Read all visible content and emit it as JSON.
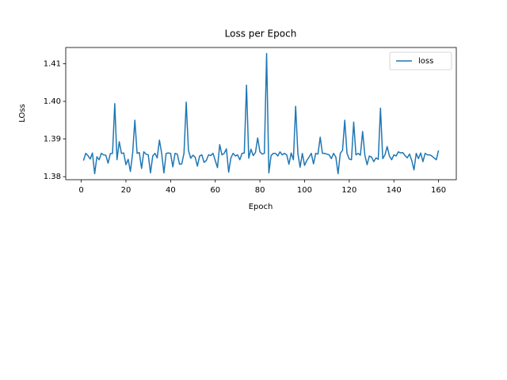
{
  "chart_data": {
    "type": "line",
    "title": "Loss per Epoch",
    "x_label": "Epoch",
    "y_label": "LOss",
    "x": [
      1,
      2,
      3,
      4,
      5,
      6,
      7,
      8,
      9,
      10,
      11,
      12,
      13,
      14,
      15,
      16,
      17,
      18,
      19,
      20,
      21,
      22,
      23,
      24,
      25,
      26,
      27,
      28,
      29,
      30,
      31,
      32,
      33,
      34,
      35,
      36,
      37,
      38,
      39,
      40,
      41,
      42,
      43,
      44,
      45,
      46,
      47,
      48,
      49,
      50,
      51,
      52,
      53,
      54,
      55,
      56,
      57,
      58,
      59,
      60,
      61,
      62,
      63,
      64,
      65,
      66,
      67,
      68,
      69,
      70,
      71,
      72,
      73,
      74,
      75,
      76,
      77,
      78,
      79,
      80,
      81,
      82,
      83,
      84,
      85,
      86,
      87,
      88,
      89,
      90,
      91,
      92,
      93,
      94,
      95,
      96,
      97,
      98,
      99,
      100,
      101,
      102,
      103,
      104,
      105,
      106,
      107,
      108,
      109,
      110,
      111,
      112,
      113,
      114,
      115,
      116,
      117,
      118,
      119,
      120,
      121,
      122,
      123,
      124,
      125,
      126,
      127,
      128,
      129,
      130,
      131,
      132,
      133,
      134,
      135,
      136,
      137,
      138,
      139,
      140,
      141,
      142,
      143,
      144,
      145,
      146,
      147,
      148,
      149,
      150,
      151,
      152,
      153,
      154,
      155,
      156,
      157,
      158,
      159,
      160
    ],
    "series": [
      {
        "name": "loss",
        "color": "#1f77b4",
        "values": [
          1.3843,
          1.3862,
          1.3856,
          1.3847,
          1.3863,
          1.3808,
          1.3853,
          1.3845,
          1.3862,
          1.3858,
          1.3857,
          1.3836,
          1.3861,
          1.3862,
          1.3994,
          1.3845,
          1.3893,
          1.3862,
          1.3863,
          1.3832,
          1.3846,
          1.3814,
          1.3862,
          1.395,
          1.3862,
          1.3864,
          1.3822,
          1.3866,
          1.386,
          1.3858,
          1.381,
          1.3855,
          1.3862,
          1.385,
          1.3897,
          1.3862,
          1.381,
          1.3862,
          1.3863,
          1.3862,
          1.3826,
          1.3862,
          1.386,
          1.3833,
          1.3834,
          1.3862,
          1.3998,
          1.387,
          1.3849,
          1.3857,
          1.3852,
          1.3828,
          1.3855,
          1.3858,
          1.3838,
          1.3843,
          1.3858,
          1.3856,
          1.3862,
          1.3843,
          1.3824,
          1.3885,
          1.3858,
          1.3862,
          1.3874,
          1.3812,
          1.385,
          1.3862,
          1.3855,
          1.3858,
          1.3845,
          1.3862,
          1.3863,
          1.4043,
          1.3849,
          1.3873,
          1.3856,
          1.3864,
          1.3903,
          1.3866,
          1.386,
          1.3862,
          1.4127,
          1.381,
          1.3856,
          1.3862,
          1.3862,
          1.3855,
          1.3866,
          1.3858,
          1.3862,
          1.3858,
          1.3833,
          1.3863,
          1.3845,
          1.3987,
          1.3862,
          1.3825,
          1.3862,
          1.383,
          1.3843,
          1.3852,
          1.3862,
          1.3834,
          1.3862,
          1.386,
          1.3905,
          1.3862,
          1.3862,
          1.386,
          1.3858,
          1.3848,
          1.3862,
          1.3852,
          1.3808,
          1.3862,
          1.387,
          1.395,
          1.3862,
          1.3847,
          1.3845,
          1.3945,
          1.3858,
          1.3862,
          1.3857,
          1.392,
          1.3857,
          1.3832,
          1.3855,
          1.3852,
          1.384,
          1.385,
          1.3846,
          1.3982,
          1.3848,
          1.3858,
          1.388,
          1.3855,
          1.3845,
          1.3858,
          1.3855,
          1.3866,
          1.3863,
          1.3864,
          1.3856,
          1.385,
          1.386,
          1.3843,
          1.3818,
          1.3862,
          1.3848,
          1.3863,
          1.384,
          1.3862,
          1.3858,
          1.3858,
          1.3855,
          1.385,
          1.3845,
          1.387
        ]
      }
    ],
    "xlim": [
      -6.95,
      167.95
    ],
    "xticks": [
      0,
      20,
      40,
      60,
      80,
      100,
      120,
      140,
      160
    ],
    "ylim": [
      1.3792,
      1.4143
    ],
    "yticks": [
      1.38,
      1.39,
      {
        "value": 1.4,
        "label": "1.40"
      },
      1.41
    ],
    "legend": "upper right"
  }
}
